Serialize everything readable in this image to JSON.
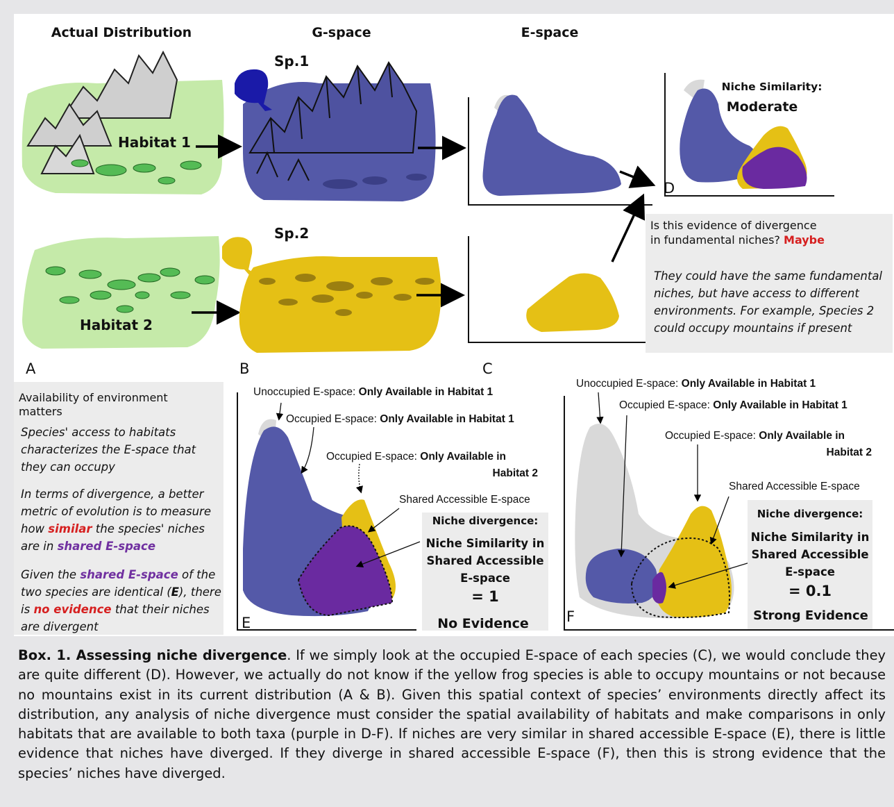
{
  "panels": {
    "header_actual": "Actual Distribution",
    "header_gspace": "G-space",
    "header_espace": "E-space",
    "habitat1": "Habitat 1",
    "habitat2": "Habitat 2",
    "sp1": "Sp.1",
    "sp2": "Sp.2",
    "letters": {
      "a": "A",
      "b": "B",
      "c": "C",
      "d": "D",
      "e": "E",
      "f": "F"
    }
  },
  "box_d": {
    "title_line1": "Niche Similarity:",
    "title_line2": "Moderate"
  },
  "question_box": {
    "line1": "Is this evidence of divergence",
    "line2_prefix": "in fundamental niches?",
    "line2_answer": "Maybe",
    "body": [
      "They could have the same fundamental",
      "niches, but have access to different",
      "environments. For example, Species 2",
      "could occupy mountains if present"
    ]
  },
  "left_box": {
    "title_line1": "Availability of environment",
    "title_line2": "matters",
    "p1": [
      "Species' access to habitats",
      "characterizes the E-space that",
      "they can occupy"
    ],
    "p2_line1": "In terms of divergence, a better",
    "p2_line2": "metric of evolution is to measure",
    "p2_line3_pre": "how ",
    "p2_line3_red": "similar",
    "p2_line3_post": " the species' niches",
    "p2_line4_pre": "are in ",
    "p2_line4_purple": "shared E-space",
    "p3_line1_pre": "Given the ",
    "p3_line1_purple": "shared E-space",
    "p3_line1_post": " of the",
    "p3_line2_pre": "two species are identical (",
    "p3_line2_bold": "E",
    "p3_line2_post": "), there",
    "p3_line3_pre": "is ",
    "p3_line3_red": "no evidence",
    "p3_line3_post": " that their niches",
    "p3_line4": "are divergent"
  },
  "panel_e": {
    "unoccupied_pre": "Unoccupied E-space: ",
    "unoccupied_bold": "Only Available in Habitat 1",
    "occ1_pre": "Occupied E-space: ",
    "occ1_bold": "Only Available in Habitat 1",
    "occ2_pre": "Occupied E-space: ",
    "occ2_bold_1": "Only Available in",
    "occ2_bold_2": "Habitat 2",
    "shared": "Shared Accessible E-space",
    "box_title": "Niche divergence:",
    "box_l1": "Niche Similarity in",
    "box_l2": "Shared Accessible",
    "box_l3": "E-space",
    "box_value": "= 1",
    "box_verdict": "No Evidence"
  },
  "panel_f": {
    "unoccupied_pre": "Unoccupied E-space: ",
    "unoccupied_bold": "Only Available in Habitat 1",
    "occ1_pre": "Occupied E-space: ",
    "occ1_bold": "Only Available in Habitat 1",
    "occ2_pre": "Occupied E-space:  ",
    "occ2_bold_1": "Only Available in",
    "occ2_bold_2": "Habitat 2",
    "shared": "Shared Accessible E-space",
    "box_title": "Niche divergence:",
    "box_l1": "Niche Similarity in",
    "box_l2": "Shared Accessible",
    "box_l3": "E-space",
    "box_value": "= 0.1",
    "box_verdict": "Strong Evidence"
  },
  "caption": {
    "bold": "Box. 1. Assessing niche divergence",
    "text": ". If we simply look at the occupied E-space of each species (C), we would conclude they are quite different (D). However, we actually do not know if the yellow frog species is able to occupy mountains or not because no mountains exist in its current distribution (A & B). Given this spatial context of species’ environments directly affect its distribution, any analysis of niche divergence must consider the spatial availability of habitats and make comparisons in only habitats that are available to both taxa (purple in D-F). If niches are very similar in shared accessible E-space (E), there is little evidence that niches have diverged. If they diverge in shared accessible E-space (F), then this is strong evidence that the species’ niches have diverged."
  },
  "colors": {
    "blue": "#5459a8",
    "yellow": "#e5c015",
    "purple": "#6a2aa0",
    "green": "#c2eaa8",
    "grey": "#d9d9d9",
    "red": "#d62020"
  }
}
